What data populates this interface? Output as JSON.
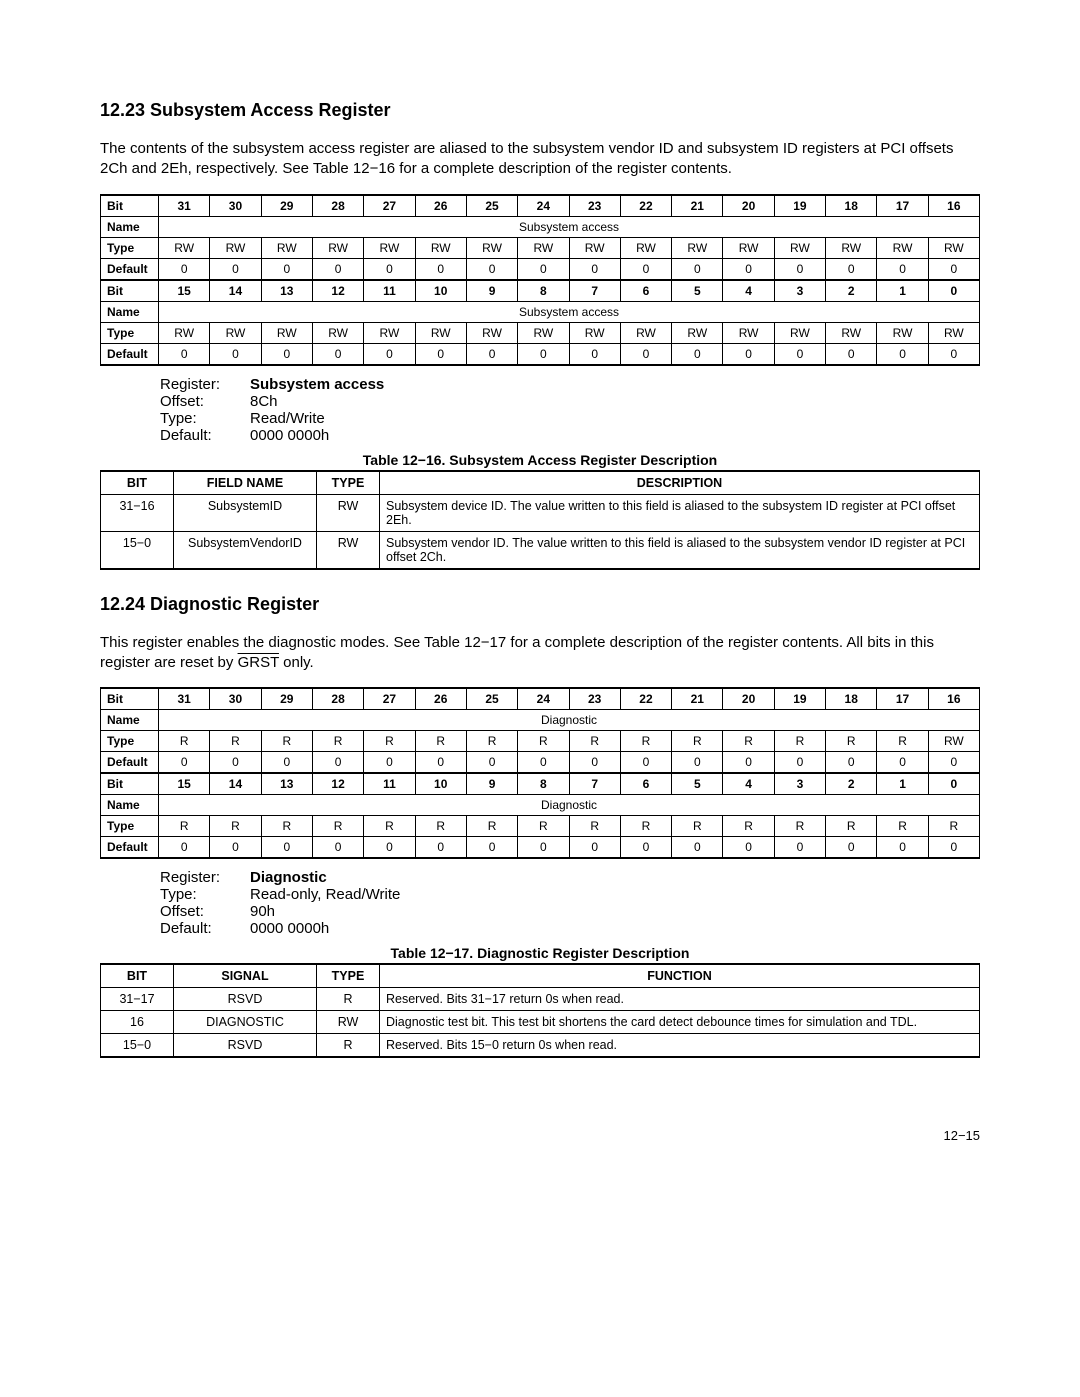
{
  "section1": {
    "heading": "12.23  Subsystem Access Register",
    "para": "The contents of the subsystem access register are aliased to the subsystem vendor ID and subsystem ID registers at PCI offsets 2Ch and 2Eh, respectively. See Table 12−16 for a complete description of the register contents.",
    "bitmap": {
      "rowlabels": [
        "Bit",
        "Name",
        "Type",
        "Default",
        "Bit",
        "Name",
        "Type",
        "Default"
      ],
      "bits_hi": [
        "31",
        "30",
        "29",
        "28",
        "27",
        "26",
        "25",
        "24",
        "23",
        "22",
        "21",
        "20",
        "19",
        "18",
        "17",
        "16"
      ],
      "bits_lo": [
        "15",
        "14",
        "13",
        "12",
        "11",
        "10",
        "9",
        "8",
        "7",
        "6",
        "5",
        "4",
        "3",
        "2",
        "1",
        "0"
      ],
      "name": "Subsystem access",
      "type_hi": [
        "RW",
        "RW",
        "RW",
        "RW",
        "RW",
        "RW",
        "RW",
        "RW",
        "RW",
        "RW",
        "RW",
        "RW",
        "RW",
        "RW",
        "RW",
        "RW"
      ],
      "type_lo": [
        "RW",
        "RW",
        "RW",
        "RW",
        "RW",
        "RW",
        "RW",
        "RW",
        "RW",
        "RW",
        "RW",
        "RW",
        "RW",
        "RW",
        "RW",
        "RW"
      ],
      "def": [
        "0",
        "0",
        "0",
        "0",
        "0",
        "0",
        "0",
        "0",
        "0",
        "0",
        "0",
        "0",
        "0",
        "0",
        "0",
        "0"
      ]
    },
    "summary": {
      "Register": "Subsystem access",
      "Offset": "8Ch",
      "Type": "Read/Write",
      "Default": "0000 0000h"
    },
    "table_caption": "Table 12−16. Subsystem Access Register Description",
    "desc": {
      "headers": [
        "BIT",
        "FIELD NAME",
        "TYPE",
        "DESCRIPTION"
      ],
      "rows": [
        [
          "31−16",
          "SubsystemID",
          "RW",
          "Subsystem device ID. The value written to this field is aliased to the subsystem ID register at PCI offset 2Eh."
        ],
        [
          "15−0",
          "SubsystemVendorID",
          "RW",
          "Subsystem vendor ID. The value written to this field is aliased to the subsystem vendor ID register at PCI offset 2Ch."
        ]
      ]
    }
  },
  "section2": {
    "heading": "12.24  Diagnostic Register",
    "para_pre": "This register enables the diagnostic modes. See Table 12−17 for a complete description of the register contents. All bits in this register are reset by ",
    "para_ov": "GRST",
    "para_post": " only.",
    "bitmap": {
      "rowlabels": [
        "Bit",
        "Name",
        "Type",
        "Default",
        "Bit",
        "Name",
        "Type",
        "Default"
      ],
      "bits_hi": [
        "31",
        "30",
        "29",
        "28",
        "27",
        "26",
        "25",
        "24",
        "23",
        "22",
        "21",
        "20",
        "19",
        "18",
        "17",
        "16"
      ],
      "bits_lo": [
        "15",
        "14",
        "13",
        "12",
        "11",
        "10",
        "9",
        "8",
        "7",
        "6",
        "5",
        "4",
        "3",
        "2",
        "1",
        "0"
      ],
      "name": "Diagnostic",
      "type_hi": [
        "R",
        "R",
        "R",
        "R",
        "R",
        "R",
        "R",
        "R",
        "R",
        "R",
        "R",
        "R",
        "R",
        "R",
        "R",
        "RW"
      ],
      "type_lo": [
        "R",
        "R",
        "R",
        "R",
        "R",
        "R",
        "R",
        "R",
        "R",
        "R",
        "R",
        "R",
        "R",
        "R",
        "R",
        "R"
      ],
      "def": [
        "0",
        "0",
        "0",
        "0",
        "0",
        "0",
        "0",
        "0",
        "0",
        "0",
        "0",
        "0",
        "0",
        "0",
        "0",
        "0"
      ]
    },
    "summary": {
      "Register": "Diagnostic",
      "Type": "Read-only, Read/Write",
      "Offset": "90h",
      "Default": "0000 0000h"
    },
    "table_caption": "Table 12−17. Diagnostic Register Description",
    "desc": {
      "headers": [
        "BIT",
        "SIGNAL",
        "TYPE",
        "FUNCTION"
      ],
      "rows": [
        [
          "31−17",
          "RSVD",
          "R",
          "Reserved. Bits 31−17 return 0s when read."
        ],
        [
          "16",
          "DIAGNOSTIC",
          "RW",
          "Diagnostic test bit. This test bit shortens the card detect debounce times for simulation and TDL."
        ],
        [
          "15−0",
          "RSVD",
          "R",
          "Reserved. Bits 15−0 return 0s when read."
        ]
      ]
    }
  },
  "page_number": "12−15"
}
